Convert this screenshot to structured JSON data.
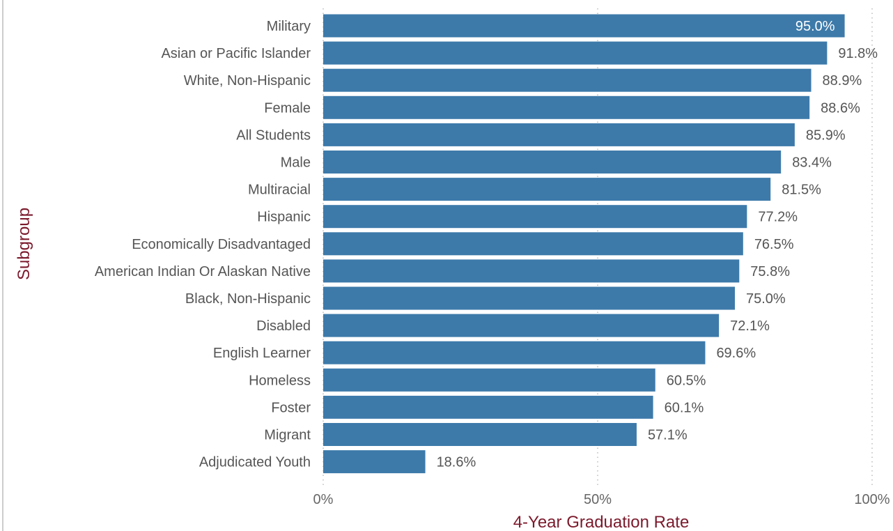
{
  "chart_data": {
    "type": "bar",
    "orientation": "horizontal",
    "categories": [
      "Military",
      "Asian or Pacific Islander",
      "White, Non-Hispanic",
      "Female",
      "All Students",
      "Male",
      "Multiracial",
      "Hispanic",
      "Economically Disadvantaged",
      "American Indian Or Alaskan Native",
      "Black, Non-Hispanic",
      "Disabled",
      "English Learner",
      "Homeless",
      "Foster",
      "Migrant",
      "Adjudicated Youth"
    ],
    "values": [
      95.0,
      91.8,
      88.9,
      88.6,
      85.9,
      83.4,
      81.5,
      77.2,
      76.5,
      75.8,
      75.0,
      72.1,
      69.6,
      60.5,
      60.1,
      57.1,
      18.6
    ],
    "value_labels": [
      "95.0%",
      "91.8%",
      "88.9%",
      "88.6%",
      "85.9%",
      "83.4%",
      "81.5%",
      "77.2%",
      "76.5%",
      "75.8%",
      "75.0%",
      "72.1%",
      "69.6%",
      "60.5%",
      "60.1%",
      "57.1%",
      "18.6%"
    ],
    "xlabel": "4-Year Graduation Rate",
    "ylabel": "Subgroup",
    "xlim": [
      0,
      100
    ],
    "x_ticks": [
      0,
      50,
      100
    ],
    "x_tick_labels": [
      "0%",
      "50%",
      "100%"
    ],
    "grid": "vertical dotted",
    "legend": "none"
  },
  "colors": {
    "bar": "#3d7aaa",
    "axis_title": "#7b1a2c",
    "category_text": "#555555",
    "value_text": "#555555",
    "value_text_inside": "#ffffff",
    "tick_text": "#666666",
    "grid": "#bbbbbb"
  }
}
